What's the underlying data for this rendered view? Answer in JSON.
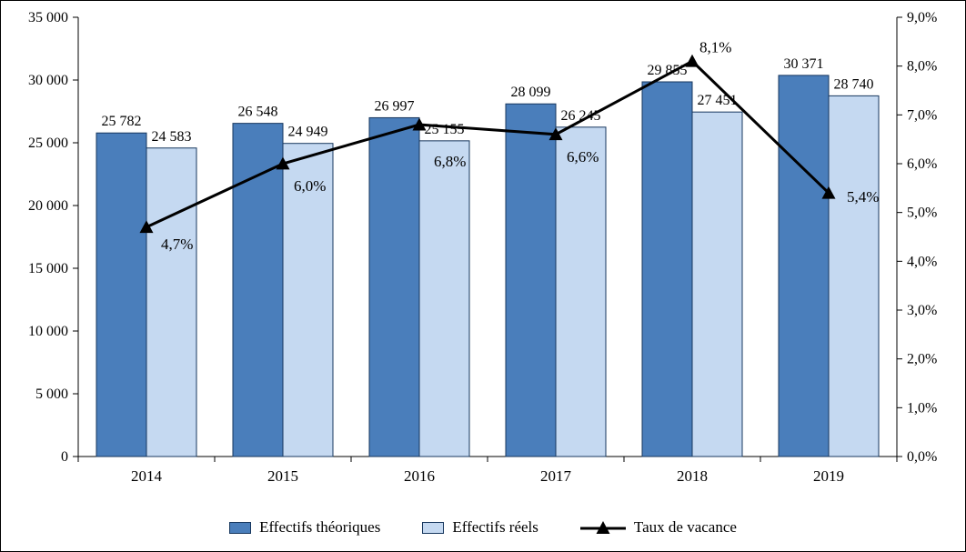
{
  "chart_data": {
    "type": "combo-bar-line",
    "title": "",
    "categories": [
      "2014",
      "2015",
      "2016",
      "2017",
      "2018",
      "2019"
    ],
    "bar_series": [
      {
        "name": "Effectifs théoriques",
        "values": [
          25782,
          26548,
          26997,
          28099,
          29855,
          30371
        ],
        "labels": [
          "25 782",
          "26 548",
          "26 997",
          "28 099",
          "29 855",
          "30 371"
        ],
        "fill": "#4a7ebb",
        "border": "#17375e"
      },
      {
        "name": "Effectifs réels",
        "values": [
          24583,
          24949,
          25155,
          26245,
          27451,
          28740
        ],
        "labels": [
          "24 583",
          "24 949",
          "25 155",
          "26 245",
          "27 451",
          "28 740"
        ],
        "fill": "#c5d9f1",
        "border": "#17375e"
      }
    ],
    "line_series": {
      "name": "Taux de vacance",
      "values": [
        4.7,
        6.0,
        6.8,
        6.6,
        8.1,
        5.4
      ],
      "labels": [
        "4,7%",
        "6,0%",
        "6,8%",
        "6,6%",
        "8,1%",
        "5,4%"
      ],
      "color": "#000000",
      "marker": "filled-triangle"
    },
    "left_axis": {
      "min": 0,
      "max": 35000,
      "step": 5000,
      "ticks": [
        "0",
        "5 000",
        "10 000",
        "15 000",
        "20 000",
        "25 000",
        "30 000",
        "35 000"
      ]
    },
    "right_axis": {
      "min": 0,
      "max": 9,
      "step": 1,
      "ticks": [
        "0,0%",
        "1,0%",
        "2,0%",
        "3,0%",
        "4,0%",
        "5,0%",
        "6,0%",
        "7,0%",
        "8,0%",
        "9,0%"
      ]
    },
    "legend": [
      "Effectifs théoriques",
      "Effectifs réels",
      "Taux de vacance"
    ],
    "gridlines": "none",
    "legend_position": "bottom"
  }
}
